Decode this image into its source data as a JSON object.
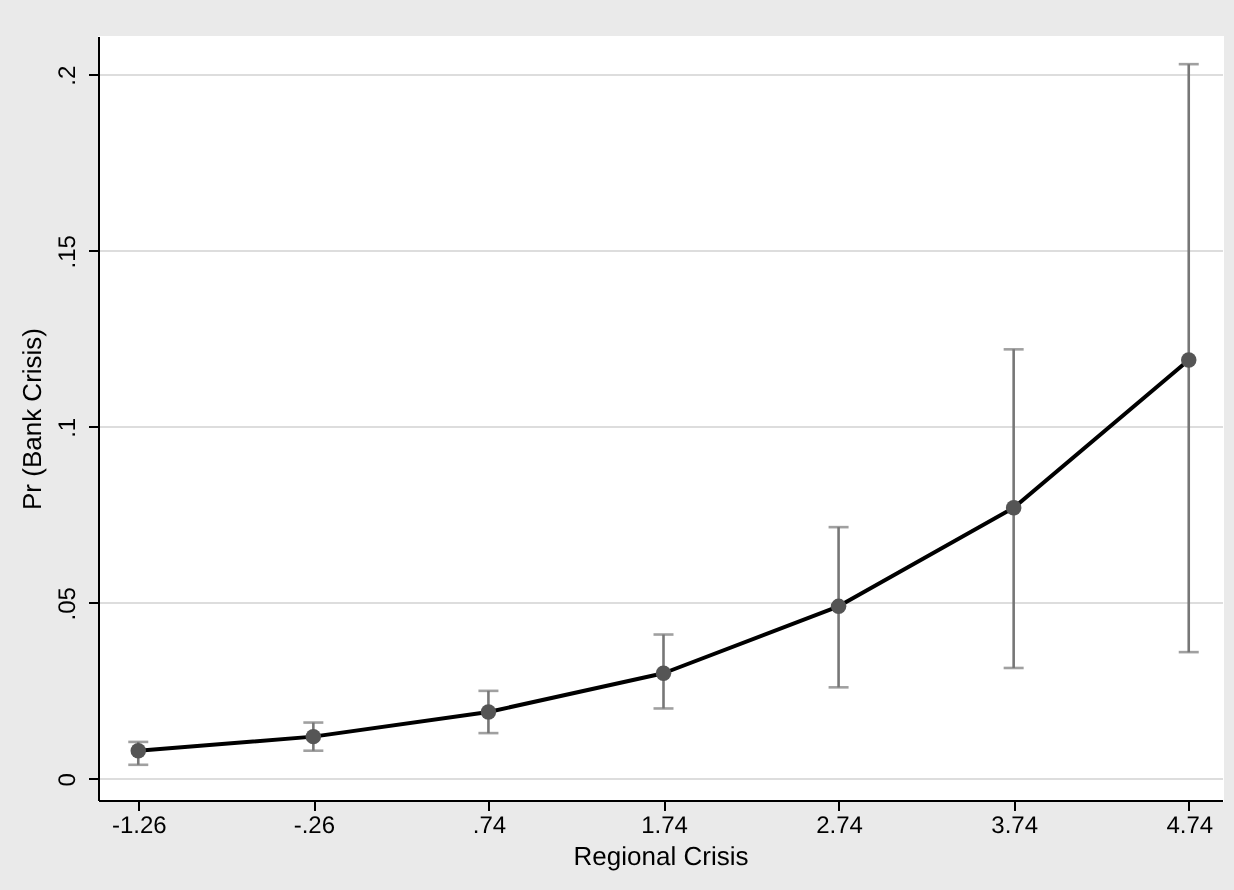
{
  "chart_data": {
    "type": "line",
    "xlabel": "Regional Crisis",
    "ylabel": "Pr (Bank Crisis)",
    "x": [
      -1.26,
      -0.26,
      0.74,
      1.74,
      2.74,
      3.74,
      4.74
    ],
    "series": [
      {
        "color": "#000000",
        "values": [
          0.008,
          0.012,
          0.019,
          0.03,
          0.049,
          0.077,
          0.119
        ],
        "errors": [
          [
            0.004,
            0.0105
          ],
          [
            0.008,
            0.016
          ],
          [
            0.013,
            0.025
          ],
          [
            0.02,
            0.041
          ],
          [
            0.026,
            0.0715
          ],
          [
            0.0315,
            0.122
          ],
          [
            0.036,
            0.203
          ]
        ]
      }
    ],
    "xlim": [
      -1.49,
      4.93
    ],
    "ylim": [
      -0.006,
      0.211
    ],
    "xticks": [
      {
        "value": -1.26,
        "label": "-1.26"
      },
      {
        "value": -0.26,
        "label": "-.26"
      },
      {
        "value": 0.74,
        "label": ".74"
      },
      {
        "value": 1.74,
        "label": "1.74"
      },
      {
        "value": 2.74,
        "label": "2.74"
      },
      {
        "value": 3.74,
        "label": "3.74"
      },
      {
        "value": 4.74,
        "label": "4.74"
      }
    ],
    "yticks": [
      {
        "value": 0,
        "label": "0"
      },
      {
        "value": 0.05,
        "label": ".05"
      },
      {
        "value": 0.1,
        "label": ".1"
      },
      {
        "value": 0.15,
        "label": ".15"
      },
      {
        "value": 0.2,
        "label": ".2"
      }
    ],
    "grid": "y",
    "marker": "circle",
    "line_style": "solid"
  }
}
